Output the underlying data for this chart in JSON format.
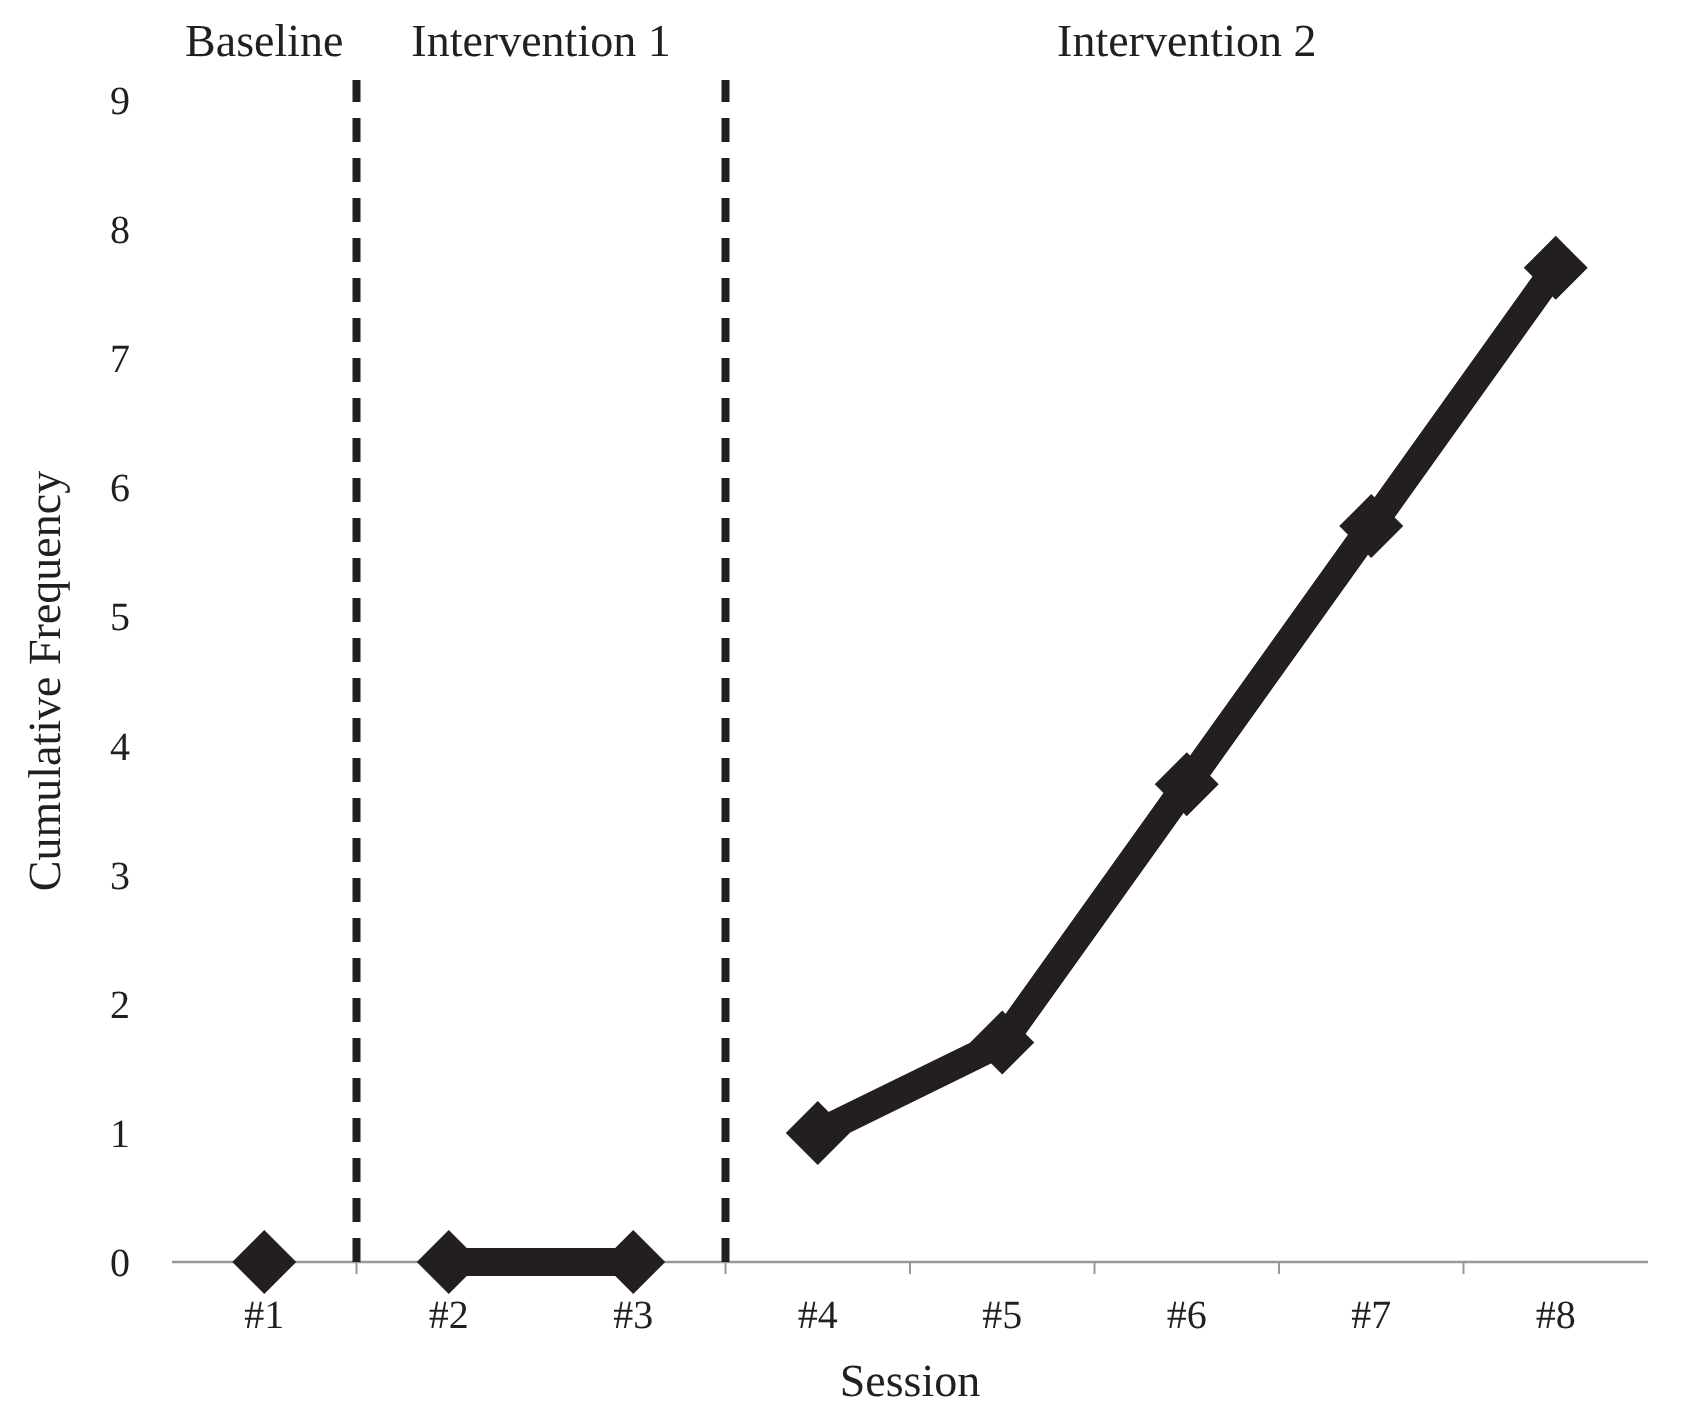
{
  "chart_data": {
    "type": "line",
    "xlabel": "Session",
    "ylabel": "Cumulative Frequency",
    "x": [
      1,
      2,
      3,
      4,
      5,
      6,
      7,
      8
    ],
    "xlim": [
      0.5,
      8.5
    ],
    "xticks": [
      {
        "value": 1,
        "label": "#1"
      },
      {
        "value": 2,
        "label": "#2"
      },
      {
        "value": 3,
        "label": "#3"
      },
      {
        "value": 4,
        "label": "#4"
      },
      {
        "value": 5,
        "label": "#5"
      },
      {
        "value": 6,
        "label": "#6"
      },
      {
        "value": 7,
        "label": "#7"
      },
      {
        "value": 8,
        "label": "#8"
      }
    ],
    "ylim": [
      0,
      9
    ],
    "yticks": [
      0,
      1,
      2,
      3,
      4,
      5,
      6,
      7,
      8,
      9
    ],
    "series": [
      {
        "color": "#231f20",
        "values": [
          0,
          null,
          null,
          null,
          null,
          null,
          null,
          null
        ]
      },
      {
        "color": "#231f20",
        "values": [
          null,
          0,
          0,
          null,
          null,
          null,
          null,
          null
        ]
      },
      {
        "color": "#231f20",
        "values": [
          null,
          null,
          null,
          1,
          1.7,
          3.7,
          5.7,
          7.7
        ]
      }
    ],
    "ref_lines": [
      {
        "axis": "x",
        "value": 1.5,
        "color": "#231f20",
        "line_style": "dashed"
      },
      {
        "axis": "x",
        "value": 3.5,
        "color": "#231f20",
        "line_style": "dashed"
      }
    ],
    "annotations": [
      "Baseline",
      "Intervention 1",
      "Intervention 2"
    ],
    "marker": "diamond",
    "line_style": "solid"
  }
}
